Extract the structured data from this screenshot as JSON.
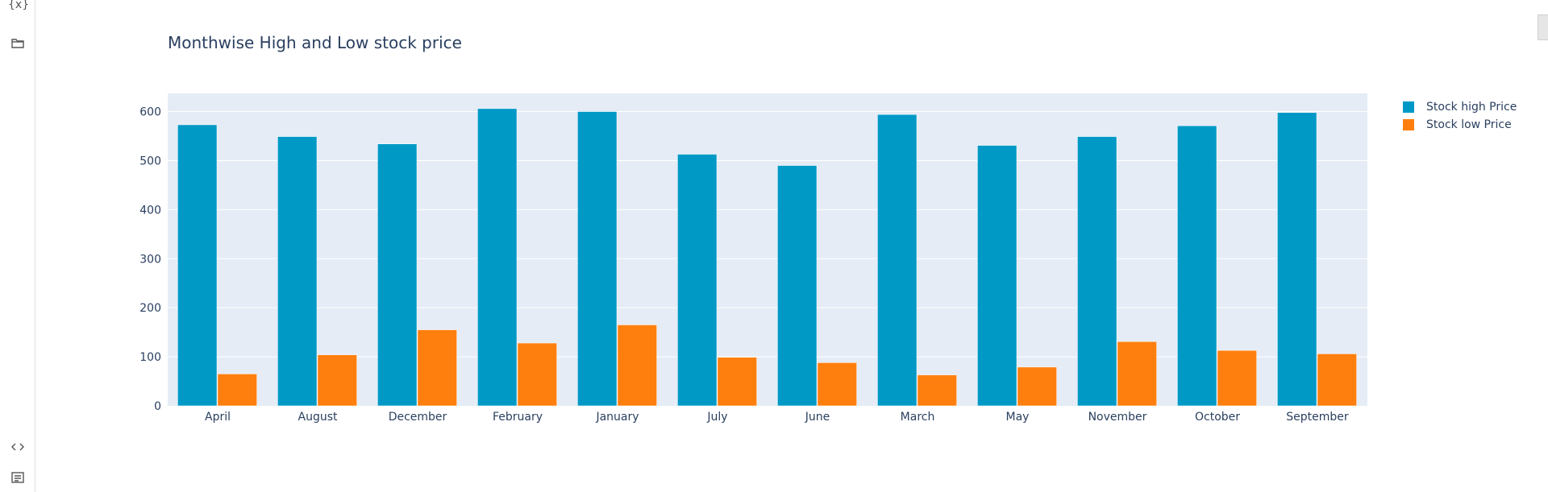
{
  "rail": {
    "icons": [
      "variables-icon",
      "folder-icon",
      "code-icon",
      "terminal-icon"
    ],
    "variables_glyph": "{x}"
  },
  "chart_data": {
    "type": "bar",
    "title": "Monthwise High and Low stock price",
    "xlabel": "",
    "ylabel": "",
    "categories": [
      "April",
      "August",
      "December",
      "February",
      "January",
      "July",
      "June",
      "March",
      "May",
      "November",
      "October",
      "September"
    ],
    "series": [
      {
        "name": "Stock high Price",
        "color": "#0099c6",
        "values": [
          573,
          549,
          534,
          606,
          600,
          513,
          490,
          594,
          531,
          549,
          571,
          598
        ]
      },
      {
        "name": "Stock low Price",
        "color": "#ff7f0e",
        "values": [
          65,
          104,
          155,
          128,
          165,
          99,
          88,
          63,
          79,
          131,
          113,
          106
        ]
      }
    ],
    "ylim": [
      0,
      637
    ],
    "yticks": [
      0,
      100,
      200,
      300,
      400,
      500,
      600
    ],
    "grid": true,
    "legend": "top-right",
    "plot_bg": "#e5ecf6",
    "grid_color": "#ffffff",
    "text_color": "#2a3f5f"
  }
}
